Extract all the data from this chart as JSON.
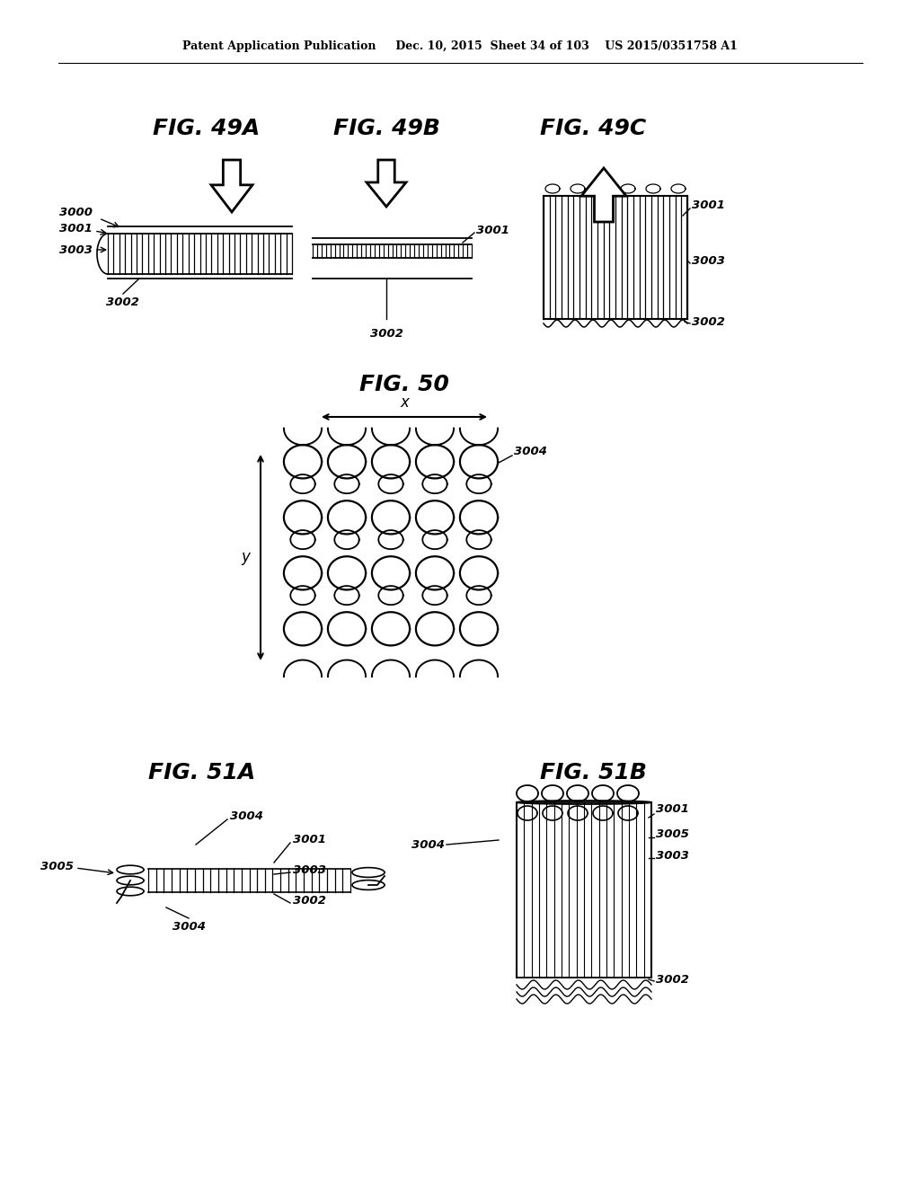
{
  "bg_color": "#ffffff",
  "text_color": "#000000",
  "header_text": "Patent Application Publication     Dec. 10, 2015  Sheet 34 of 103    US 2015/0351758 A1",
  "fig49A_title": "FIG. 49A",
  "fig49B_title": "FIG. 49B",
  "fig49C_title": "FIG. 49C",
  "fig50_title": "FIG. 50",
  "fig51A_title": "FIG. 51A",
  "fig51B_title": "FIG. 51B",
  "label_3000": "3000",
  "label_3001": "3001",
  "label_3002": "3002",
  "label_3003": "3003",
  "label_3004": "3004",
  "label_3005": "3005",
  "label_x": "x",
  "label_y": "y"
}
